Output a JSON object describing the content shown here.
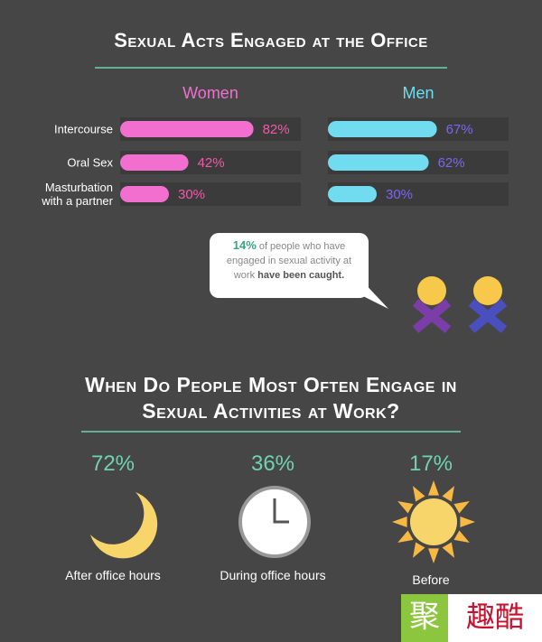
{
  "chart_data": [
    {
      "type": "hbar",
      "title": "Sexual Acts Engaged at the Office",
      "categories": [
        "Intercourse",
        "Oral Sex",
        "Masturbation with a partner"
      ],
      "series": [
        {
          "name": "Women",
          "color": "#f26fcf",
          "label_color": "#f05aa8",
          "values": [
            82,
            42,
            30
          ],
          "value_labels": [
            "82%",
            "42%",
            "30%"
          ]
        },
        {
          "name": "Men",
          "color": "#71dcef",
          "label_color": "#7b67ee",
          "values": [
            67,
            62,
            30
          ],
          "value_labels": [
            "67%",
            "62%",
            "30%"
          ]
        }
      ],
      "xlim": [
        0,
        100
      ],
      "callout": {
        "value": 14,
        "value_label": "14%",
        "text": "of people who have engaged in sexual activity at work",
        "emphasis": "have been caught."
      }
    },
    {
      "type": "stat",
      "title": "When Do People Most Often Engage in Sexual Activities at Work?",
      "categories": [
        "After office hours",
        "During office hours",
        "Before"
      ],
      "values": [
        72,
        36,
        17
      ],
      "value_labels": [
        "72%",
        "36%",
        "17%"
      ],
      "color": "#6fd3b2"
    }
  ],
  "watermark": {
    "mark": "聚",
    "text": "趣酷"
  }
}
